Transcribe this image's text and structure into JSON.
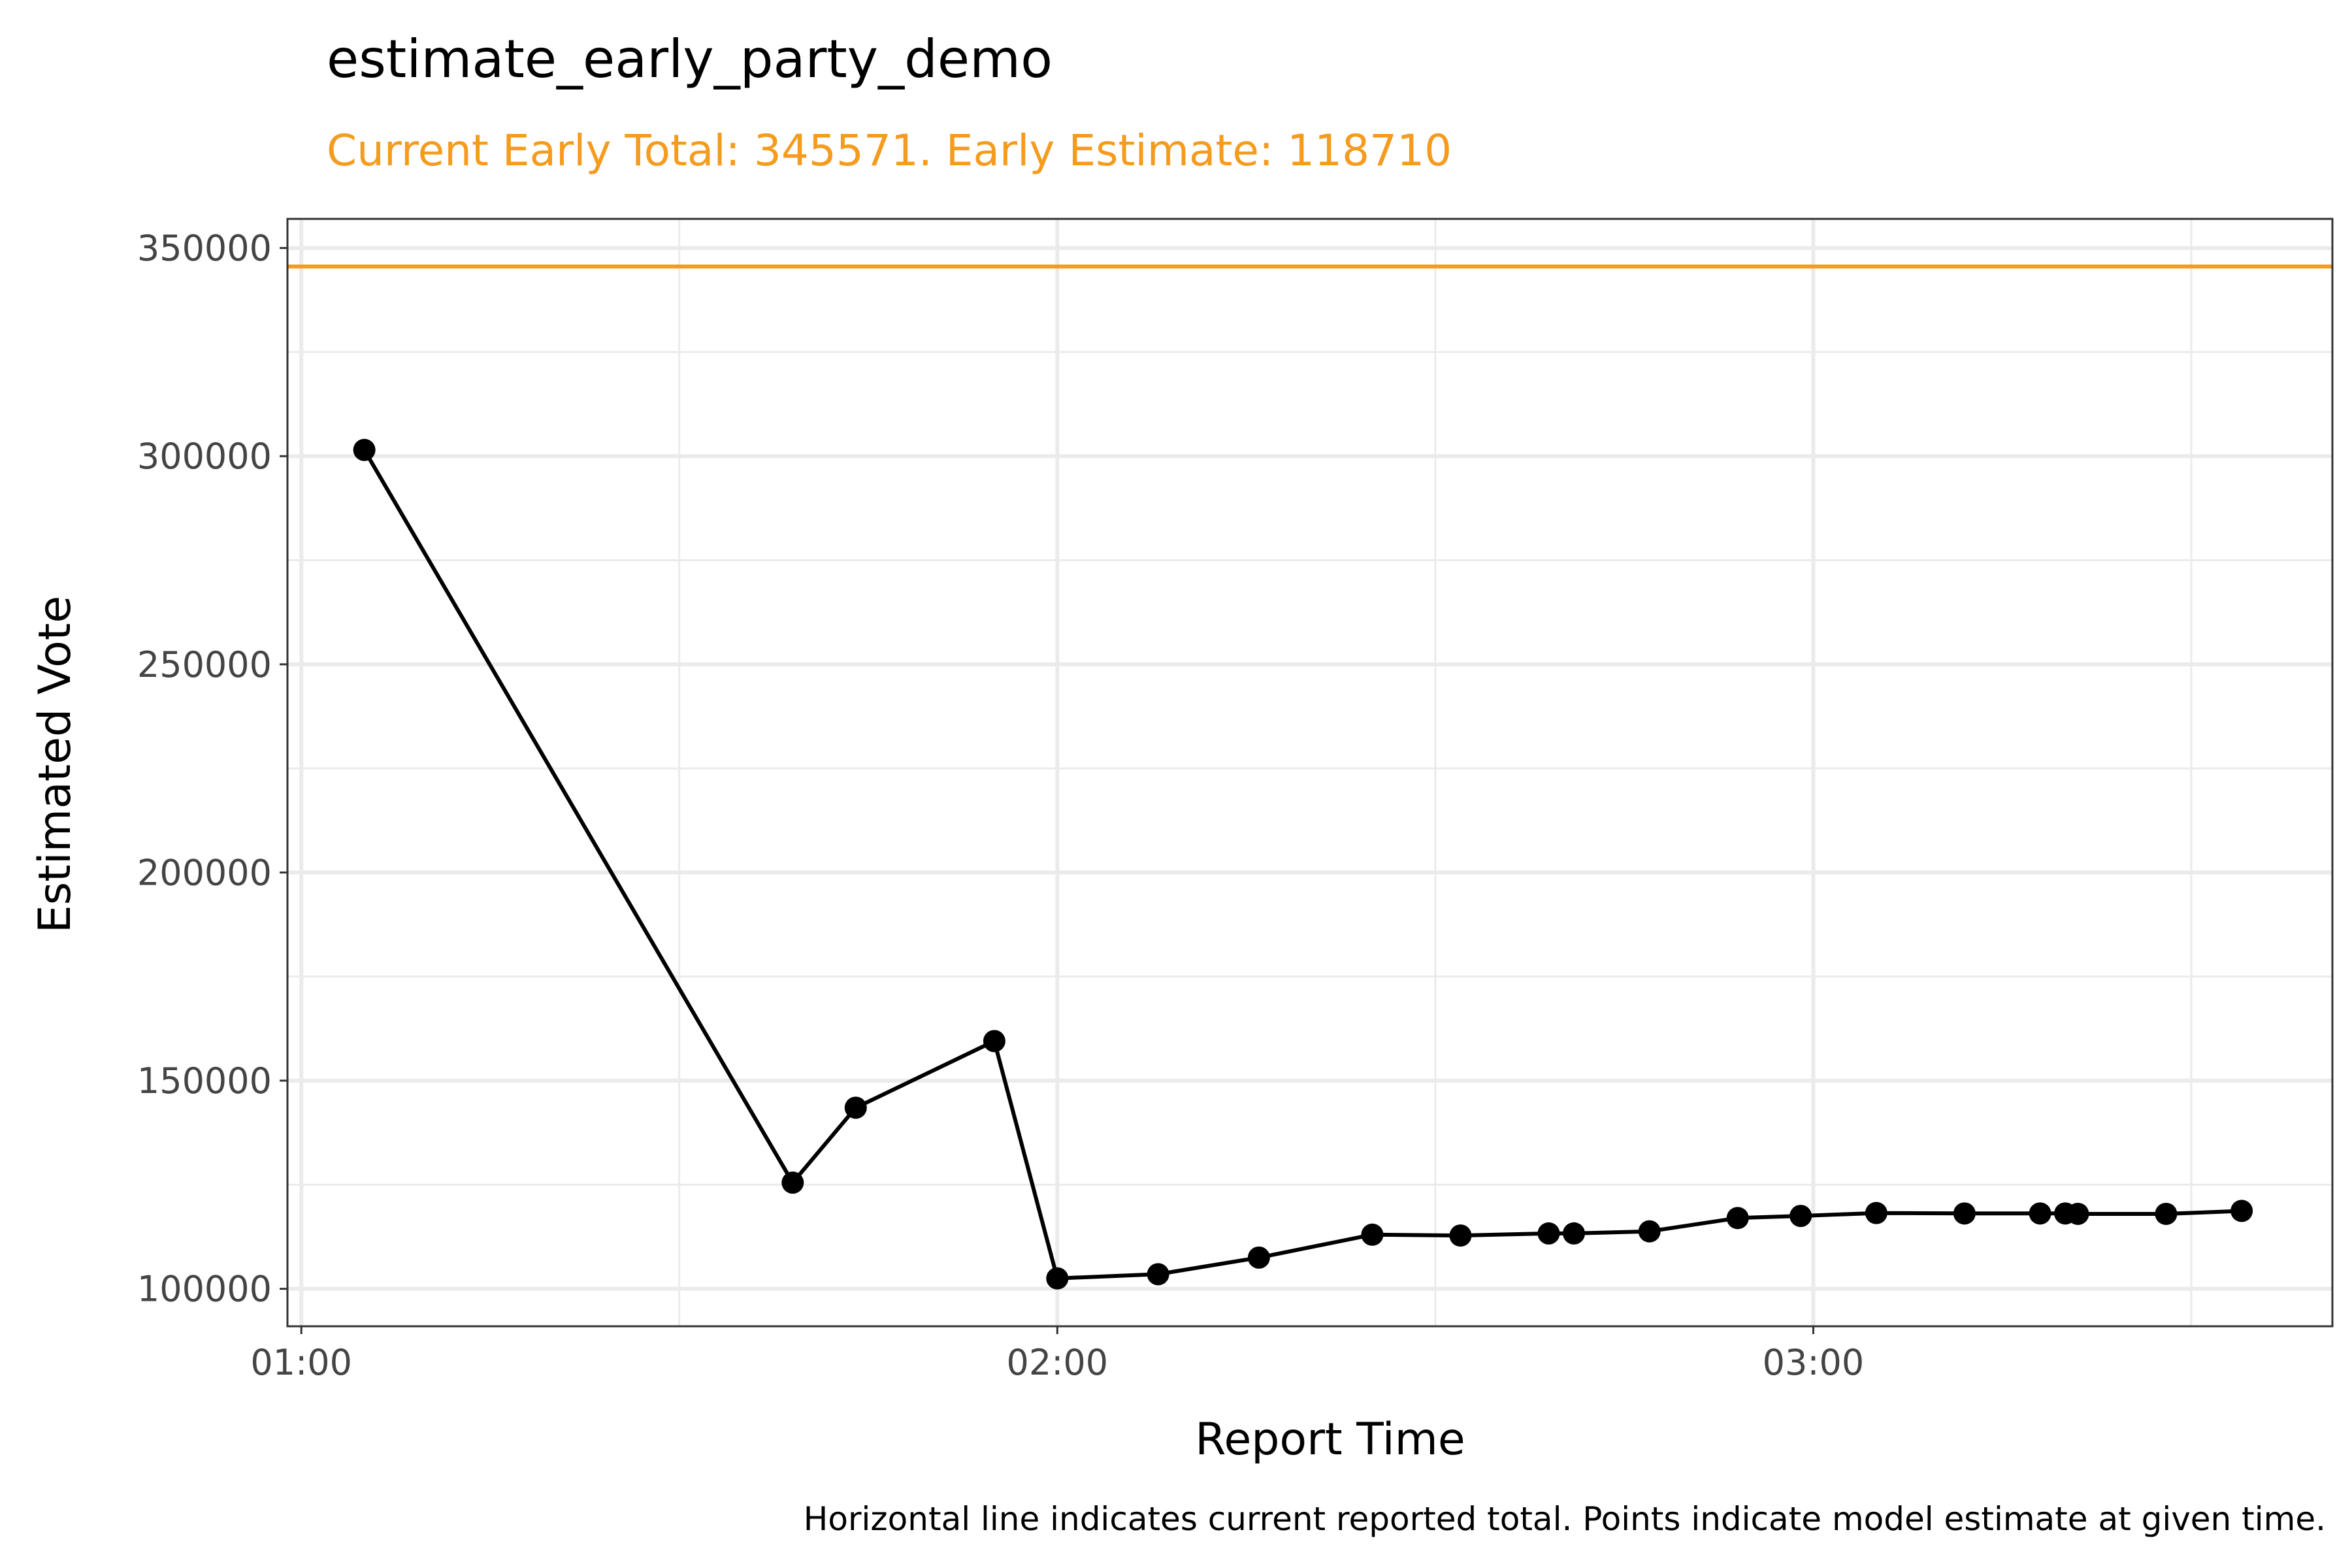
{
  "chart_data": {
    "type": "line",
    "title": "estimate_early_party_demo",
    "subtitle": "Current Early Total: 345571. Early Estimate: 118710",
    "xlabel": "Report Time",
    "ylabel": "Estimated Vote",
    "caption": "Horizontal line indicates current reported total. Points indicate model estimate at given time.",
    "x_tick_labels": [
      "01:00",
      "02:00",
      "03:00"
    ],
    "y_tick_labels": [
      "100000",
      "150000",
      "200000",
      "250000",
      "300000",
      "350000"
    ],
    "y_ticks": [
      100000,
      150000,
      200000,
      250000,
      300000,
      350000
    ],
    "ylim": [
      91000,
      357000
    ],
    "xlim_minutes": [
      -1.1,
      161.2
    ],
    "x_ticks_minutes": [
      0,
      60,
      120
    ],
    "grid": true,
    "reference_line": {
      "value": 345571,
      "color": "#F59B1E"
    },
    "colors": {
      "series": "#000000",
      "accent": "#F59B1E",
      "grid": "#EBEBEB"
    },
    "series": [
      {
        "x": [
          "01:05",
          "01:39",
          "01:44",
          "01:55",
          "02:00",
          "02:08",
          "02:16",
          "02:25",
          "02:32",
          "02:39",
          "02:41",
          "02:47",
          "02:54",
          "02:59",
          "03:05",
          "03:12",
          "03:18",
          "03:20",
          "03:21",
          "03:28",
          "03:34"
        ],
        "values": [
          301500,
          125500,
          143500,
          159500,
          102500,
          103500,
          107500,
          113000,
          112800,
          113300,
          113300,
          113800,
          117000,
          117500,
          118200,
          118100,
          118100,
          118100,
          118000,
          118000,
          118710
        ]
      }
    ]
  }
}
